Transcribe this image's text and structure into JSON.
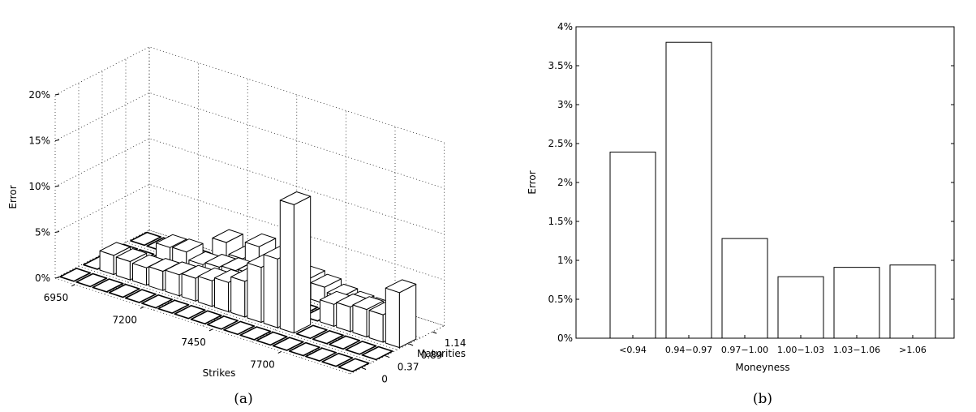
{
  "chart_data": [
    {
      "type": "bar3d",
      "caption": "(a)",
      "zlabel": "Error",
      "xlabel": "Strikes",
      "ylabel": "Maturities",
      "z_ticks": [
        "0%",
        "5%",
        "10%",
        "15%",
        "20%"
      ],
      "zlim": [
        0,
        20
      ],
      "x_ticks": [
        "6950",
        "7200",
        "7450",
        "7700"
      ],
      "y_ticks": [
        "0",
        "0.37",
        "0.89",
        "1.14"
      ],
      "grid": true,
      "rows": [
        {
          "maturity_index": 3,
          "values": [
            0,
            0,
            0,
            0,
            0,
            3.2,
            2.0,
            3.9,
            2.6,
            1.4,
            2.1,
            1.8,
            1.3,
            1.1,
            1.0,
            0.5
          ]
        },
        {
          "maturity_index": 2,
          "values": [
            0,
            0,
            0,
            2.8,
            2.9,
            2.1,
            2.4,
            2.6,
            2.8,
            0,
            0,
            0,
            0,
            2.4,
            2.7,
            3.0,
            3.0,
            6.0
          ]
        },
        {
          "maturity_index": 1,
          "values": [
            0,
            2.1,
            2.0,
            1.9,
            2.1,
            2.3,
            2.5,
            2.8,
            3.2,
            3.9,
            6.0,
            7.5,
            14.0,
            0,
            0,
            0,
            0,
            0
          ]
        },
        {
          "maturity_index": 0,
          "values": [
            0,
            0,
            0,
            0,
            0,
            0,
            0,
            0,
            0,
            0,
            0,
            0,
            0,
            0,
            0,
            0,
            0,
            0
          ]
        }
      ]
    },
    {
      "type": "bar",
      "caption": "(b)",
      "xlabel": "Moneyness",
      "ylabel": "Error",
      "categories": [
        "<0.94",
        "0.94−0.97",
        "0.97−1.00",
        "1.00−1.03",
        "1.03−1.06",
        ">1.06"
      ],
      "values": [
        2.39,
        3.8,
        1.28,
        0.79,
        0.91,
        0.94
      ],
      "ylim": [
        0,
        4
      ],
      "y_ticks": [
        "0%",
        "0.5%",
        "1%",
        "1.5%",
        "2%",
        "2.5%",
        "3%",
        "3.5%",
        "4%"
      ],
      "grid": false
    }
  ]
}
